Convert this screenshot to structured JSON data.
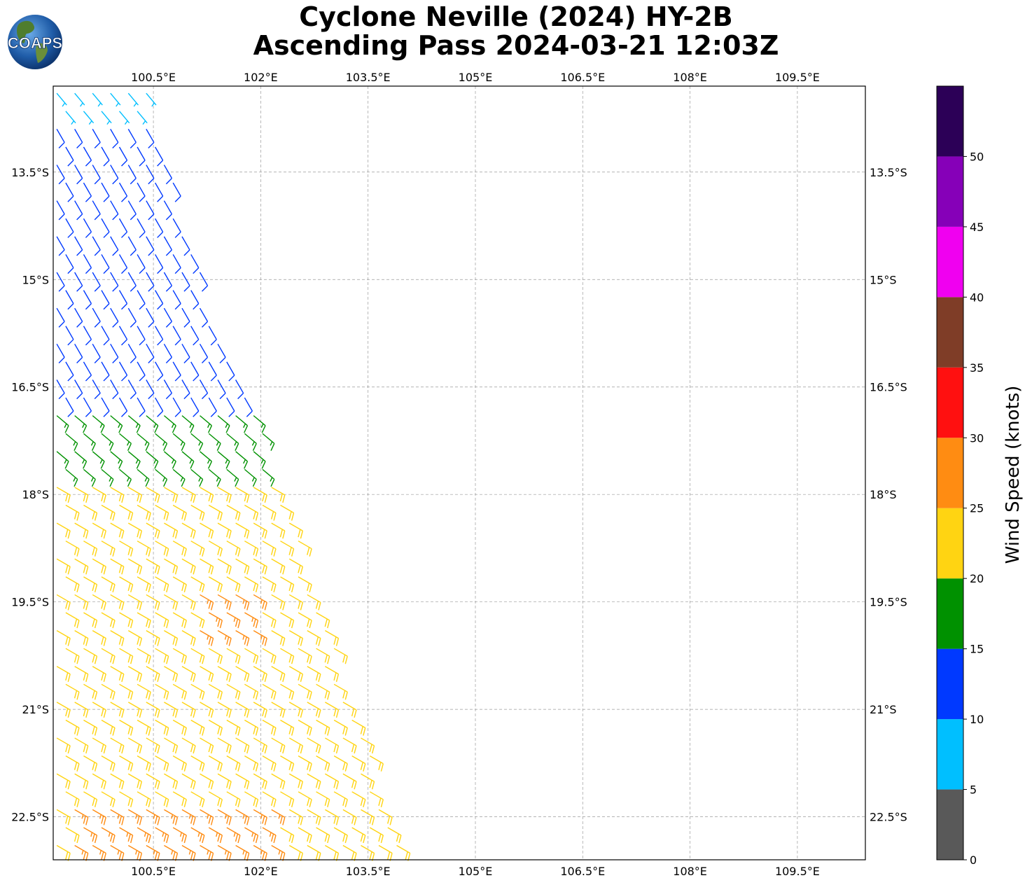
{
  "header": {
    "title_line1": "Cyclone Neville (2024) HY-2B",
    "title_line2": "Ascending Pass 2024-03-21 12:03Z",
    "logo_text": "COAPS"
  },
  "chart_data": {
    "type": "wind-barb-map",
    "x_ticks": [
      100.5,
      102,
      103.5,
      105,
      106.5,
      108,
      109.5
    ],
    "x_tick_labels": [
      "100.5°E",
      "102°E",
      "103.5°E",
      "105°E",
      "106.5°E",
      "108°E",
      "109.5°E"
    ],
    "y_ticks": [
      -13.5,
      -15,
      -16.5,
      -18,
      -19.5,
      -21,
      -22.5
    ],
    "y_tick_labels": [
      "13.5°S",
      "15°S",
      "16.5°S",
      "18°S",
      "19.5°S",
      "21°S",
      "22.5°S"
    ],
    "xlim": [
      99.1,
      110.45
    ],
    "ylim": [
      -23.1,
      -12.3
    ],
    "grid": true,
    "colorbar": {
      "label": "Wind Speed (knots)",
      "ticks": [
        0,
        5,
        10,
        15,
        20,
        25,
        30,
        35,
        40,
        45,
        50
      ],
      "bins": [
        {
          "min": 0,
          "max": 5,
          "color": "#595959"
        },
        {
          "min": 5,
          "max": 10,
          "color": "#00bfff"
        },
        {
          "min": 10,
          "max": 15,
          "color": "#0039ff"
        },
        {
          "min": 15,
          "max": 20,
          "color": "#009100"
        },
        {
          "min": 20,
          "max": 25,
          "color": "#ffd412"
        },
        {
          "min": 25,
          "max": 30,
          "color": "#ff8c12"
        },
        {
          "min": 30,
          "max": 35,
          "color": "#ff1010"
        },
        {
          "min": 35,
          "max": 40,
          "color": "#7f3d27"
        },
        {
          "min": 40,
          "max": 45,
          "color": "#f000f0"
        },
        {
          "min": 45,
          "max": 50,
          "color": "#8600b8"
        },
        {
          "min": 50,
          "max": 55,
          "color": "#2c0057"
        }
      ]
    },
    "swath": {
      "west_lon": 99.1,
      "east_edge": [
        [
          -12.3,
          100.4
        ],
        [
          -15.0,
          101.2
        ],
        [
          -17.0,
          102.0
        ],
        [
          -19.5,
          102.8
        ],
        [
          -21.5,
          103.5
        ],
        [
          -23.1,
          104.0
        ]
      ],
      "lat_step": 0.25,
      "lon_step": 0.25
    },
    "wind_regions": [
      {
        "lat_max": -12.3,
        "lat_min": -12.8,
        "speed_kt": 8,
        "direction_deg": 140
      },
      {
        "lat_max": -12.8,
        "lat_min": -16.8,
        "speed_kt": 12,
        "direction_deg": 150
      },
      {
        "lat_max": -16.8,
        "lat_min": -17.8,
        "speed_kt": 17,
        "direction_deg": 130
      },
      {
        "lat_max": -17.8,
        "lat_min": -23.1,
        "speed_kt": 22,
        "direction_deg": 120
      },
      {
        "lat_max": -19.2,
        "lat_min": -19.9,
        "lon_min": 101.1,
        "lon_max": 101.9,
        "speed_kt": 27,
        "direction_deg": 120
      },
      {
        "lat_max": -22.4,
        "lat_min": -23.1,
        "lon_min": 99.3,
        "lon_max": 102.2,
        "speed_kt": 27,
        "direction_deg": 120
      }
    ]
  }
}
